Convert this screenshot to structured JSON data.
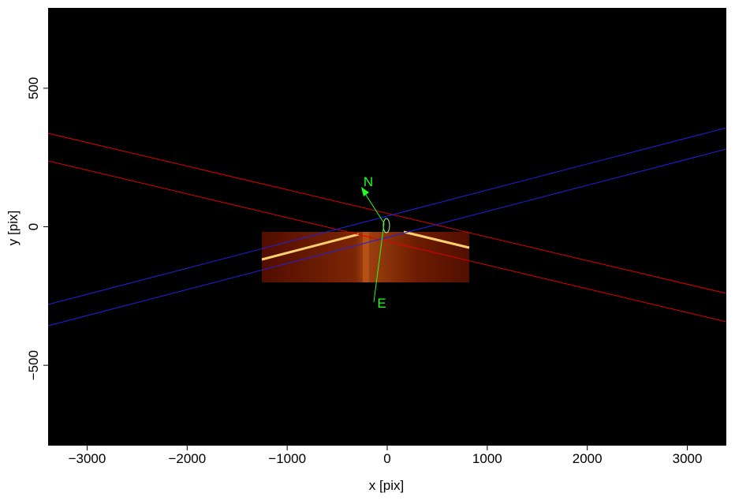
{
  "chart_data": {
    "type": "image",
    "xlabel": "x [pix]",
    "ylabel": "y [pix]",
    "xlim": [
      -3390,
      3390
    ],
    "ylim": [
      -790,
      790
    ],
    "xticks": [
      {
        "value": -3000,
        "label": "−3000"
      },
      {
        "value": -2000,
        "label": "−2000"
      },
      {
        "value": -1000,
        "label": "−1000"
      },
      0,
      1000,
      2000,
      3000
    ],
    "yticks": [
      {
        "value": -500,
        "label": "−500"
      },
      0,
      500
    ],
    "annotations": [
      "N",
      "E"
    ]
  }
}
